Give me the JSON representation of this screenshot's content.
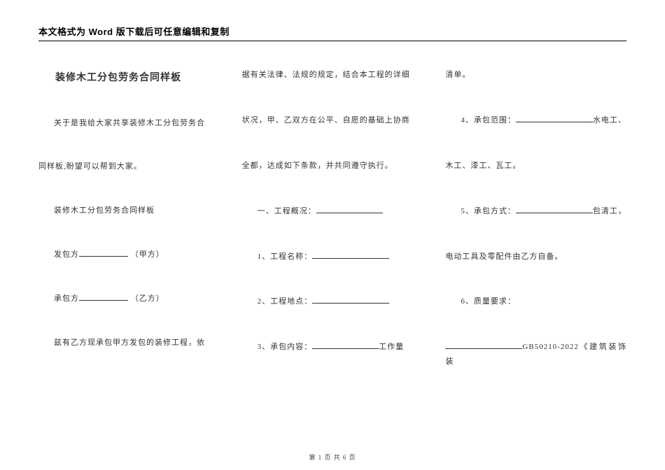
{
  "header": {
    "notice": "本文格式为 Word 版下载后可任意编辑和复制"
  },
  "col1": {
    "title": "装修木工分包劳务合同样板",
    "p1a": "关于是我给大家共享装修木工分包劳务合",
    "p1b": "同样板,盼望可以帮到大家。",
    "p2": "装修木工分包劳务合同样板",
    "p3a": "发包方",
    "p3b": "（甲方）",
    "p4a": "承包方",
    "p4b": "（乙方）",
    "p5": "兹有乙方现承包甲方发包的装修工程，依"
  },
  "col2": {
    "p1": "据有关法律、法规的规定，结合本工程的详细",
    "p2": "状况，甲、乙双方在公平、自愿的基础上协商",
    "p3": "全都，达成如下条款，并共同遵守执行。",
    "p4a": "一、工程概况：",
    "p5a": "1、工程名称：",
    "p6a": "2、工程地点：",
    "p7a": "3、承包内容：",
    "p7b": "工作量"
  },
  "col3": {
    "p1": "清单。",
    "p2a": "4、承包范围：",
    "p2b": "水电工、",
    "p3": "木工、漆工、瓦工。",
    "p4a": "5、承包方式：",
    "p4b": "包清工，",
    "p5": "电动工具及零配件由乙方自备。",
    "p6": "6、质量要求：",
    "p7b": "GB50210-2022《建筑装饰装"
  },
  "footer": {
    "text": "第 1 页 共 6 页"
  }
}
